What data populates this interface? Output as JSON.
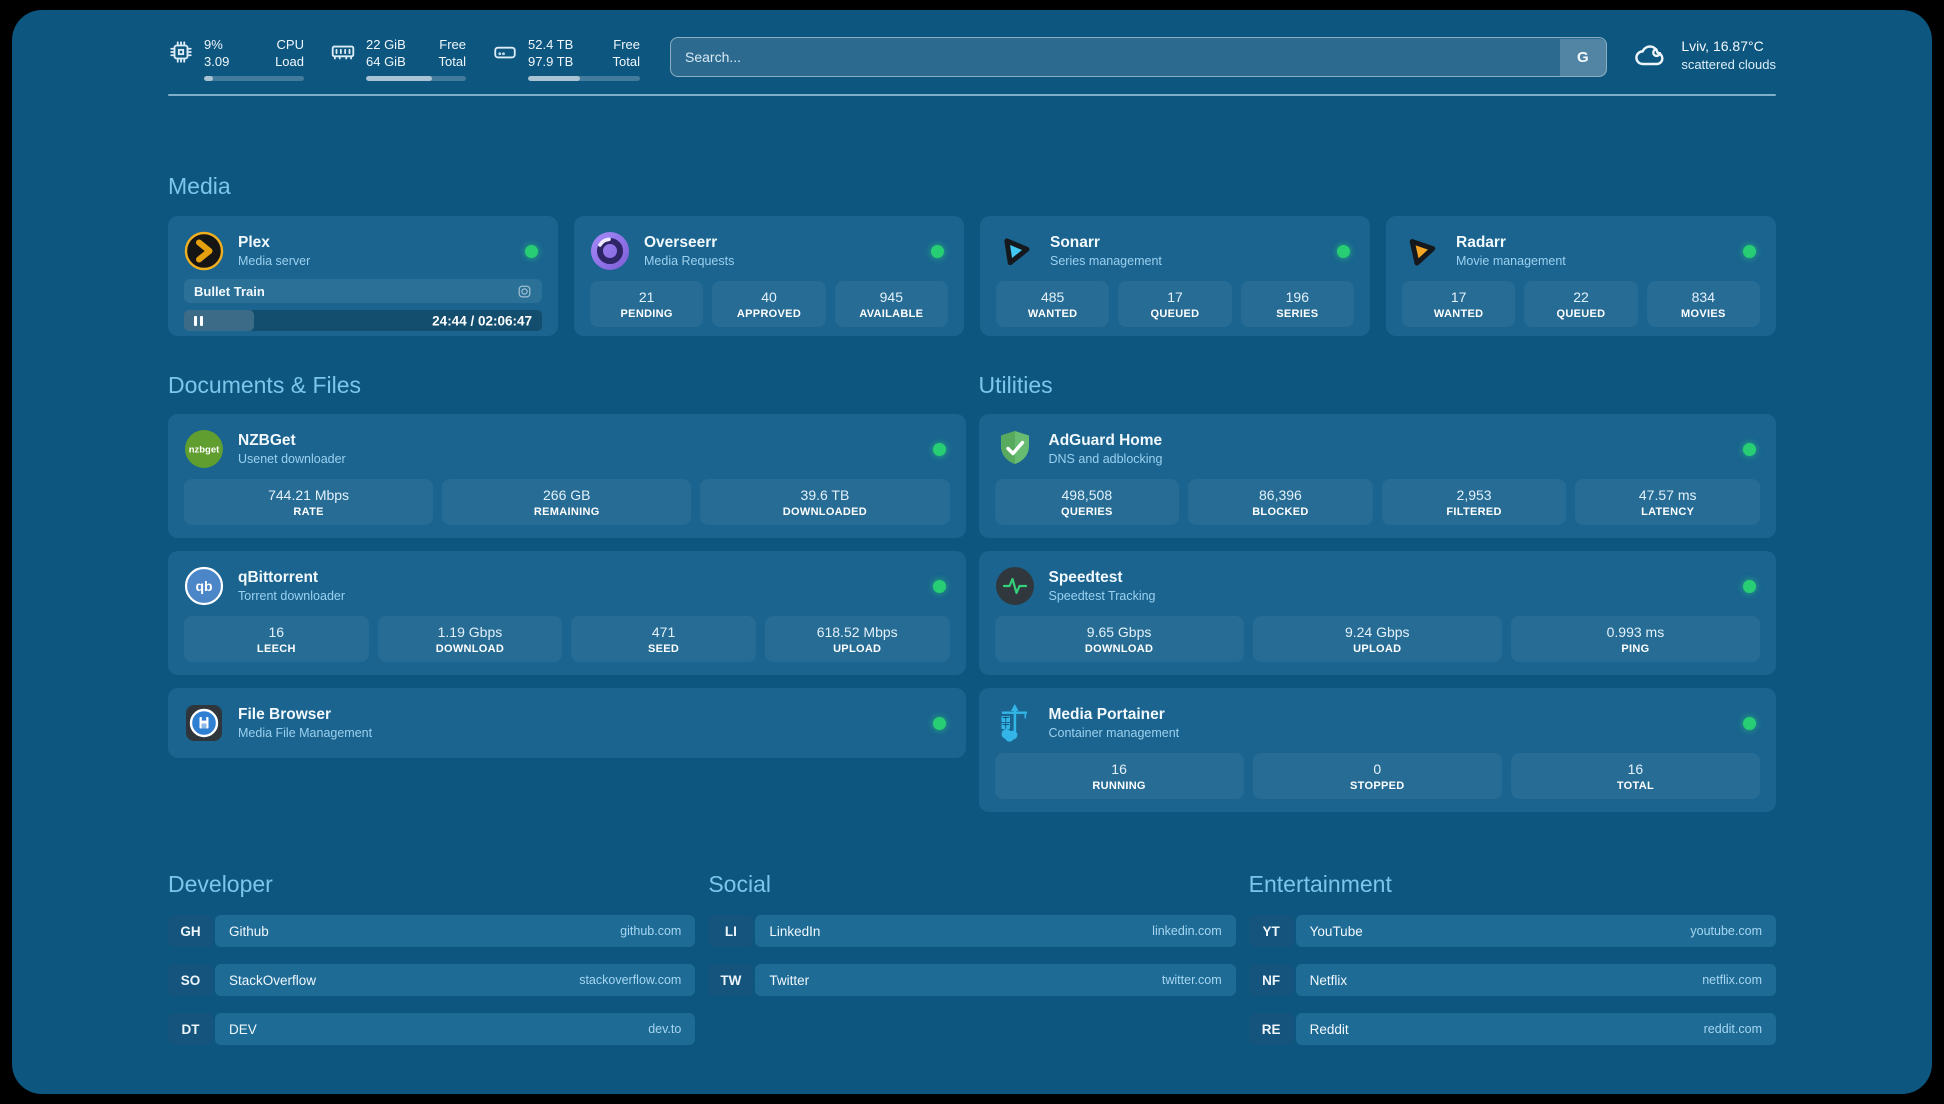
{
  "header": {
    "system": [
      {
        "icon": "cpu-icon",
        "value_top": "9%",
        "value_bottom": "3.09",
        "label_top": "CPU",
        "label_bottom": "Load",
        "progress_pct": 9
      },
      {
        "icon": "ram-icon",
        "value_top": "22 GiB",
        "value_bottom": "64 GiB",
        "label_top": "Free",
        "label_bottom": "Total",
        "progress_pct": 66
      },
      {
        "icon": "disk-icon",
        "value_top": "52.4 TB",
        "value_bottom": "97.9 TB",
        "label_top": "Free",
        "label_bottom": "Total",
        "progress_pct": 46
      }
    ],
    "search": {
      "placeholder": "Search...",
      "engine_button": "G"
    },
    "weather": {
      "location_temp": "Lviv, 16.87°C",
      "condition": "scattered clouds"
    }
  },
  "media": {
    "heading": "Media",
    "plex": {
      "title": "Plex",
      "subtitle": "Media server",
      "now_playing": "Bullet Train",
      "time": "24:44 / 02:06:47",
      "progress_pct": 19.5
    },
    "overseerr": {
      "title": "Overseerr",
      "subtitle": "Media Requests",
      "stats": [
        {
          "value": "21",
          "label": "PENDING"
        },
        {
          "value": "40",
          "label": "APPROVED"
        },
        {
          "value": "945",
          "label": "AVAILABLE"
        }
      ]
    },
    "sonarr": {
      "title": "Sonarr",
      "subtitle": "Series management",
      "stats": [
        {
          "value": "485",
          "label": "WANTED"
        },
        {
          "value": "17",
          "label": "QUEUED"
        },
        {
          "value": "196",
          "label": "SERIES"
        }
      ]
    },
    "radarr": {
      "title": "Radarr",
      "subtitle": "Movie management",
      "stats": [
        {
          "value": "17",
          "label": "WANTED"
        },
        {
          "value": "22",
          "label": "QUEUED"
        },
        {
          "value": "834",
          "label": "MOVIES"
        }
      ]
    }
  },
  "documents": {
    "heading": "Documents & Files",
    "nzbget": {
      "title": "NZBGet",
      "subtitle": "Usenet downloader",
      "icon_text": "nzbget",
      "stats": [
        {
          "value": "744.21 Mbps",
          "label": "RATE"
        },
        {
          "value": "266 GB",
          "label": "REMAINING"
        },
        {
          "value": "39.6 TB",
          "label": "DOWNLOADED"
        }
      ]
    },
    "qbittorrent": {
      "title": "qBittorrent",
      "subtitle": "Torrent downloader",
      "icon_text": "qb",
      "stats": [
        {
          "value": "16",
          "label": "LEECH"
        },
        {
          "value": "1.19 Gbps",
          "label": "DOWNLOAD"
        },
        {
          "value": "471",
          "label": "SEED"
        },
        {
          "value": "618.52 Mbps",
          "label": "UPLOAD"
        }
      ]
    },
    "filebrowser": {
      "title": "File Browser",
      "subtitle": "Media File Management"
    }
  },
  "utilities": {
    "heading": "Utilities",
    "adguard": {
      "title": "AdGuard Home",
      "subtitle": "DNS and adblocking",
      "stats": [
        {
          "value": "498,508",
          "label": "QUERIES"
        },
        {
          "value": "86,396",
          "label": "BLOCKED"
        },
        {
          "value": "2,953",
          "label": "FILTERED"
        },
        {
          "value": "47.57 ms",
          "label": "LATENCY"
        }
      ]
    },
    "speedtest": {
      "title": "Speedtest",
      "subtitle": "Speedtest Tracking",
      "stats": [
        {
          "value": "9.65 Gbps",
          "label": "DOWNLOAD"
        },
        {
          "value": "9.24 Gbps",
          "label": "UPLOAD"
        },
        {
          "value": "0.993 ms",
          "label": "PING"
        }
      ]
    },
    "portainer": {
      "title": "Media Portainer",
      "subtitle": "Container management",
      "stats": [
        {
          "value": "16",
          "label": "RUNNING"
        },
        {
          "value": "0",
          "label": "STOPPED"
        },
        {
          "value": "16",
          "label": "TOTAL"
        }
      ]
    }
  },
  "bookmarks": [
    {
      "heading": "Developer",
      "items": [
        {
          "abbr": "GH",
          "name": "Github",
          "url": "github.com"
        },
        {
          "abbr": "SO",
          "name": "StackOverflow",
          "url": "stackoverflow.com"
        },
        {
          "abbr": "DT",
          "name": "DEV",
          "url": "dev.to"
        }
      ]
    },
    {
      "heading": "Social",
      "items": [
        {
          "abbr": "LI",
          "name": "LinkedIn",
          "url": "linkedin.com"
        },
        {
          "abbr": "TW",
          "name": "Twitter",
          "url": "twitter.com"
        }
      ]
    },
    {
      "heading": "Entertainment",
      "items": [
        {
          "abbr": "YT",
          "name": "YouTube",
          "url": "youtube.com"
        },
        {
          "abbr": "NF",
          "name": "Netflix",
          "url": "netflix.com"
        },
        {
          "abbr": "RE",
          "name": "Reddit",
          "url": "reddit.com"
        }
      ]
    }
  ]
}
